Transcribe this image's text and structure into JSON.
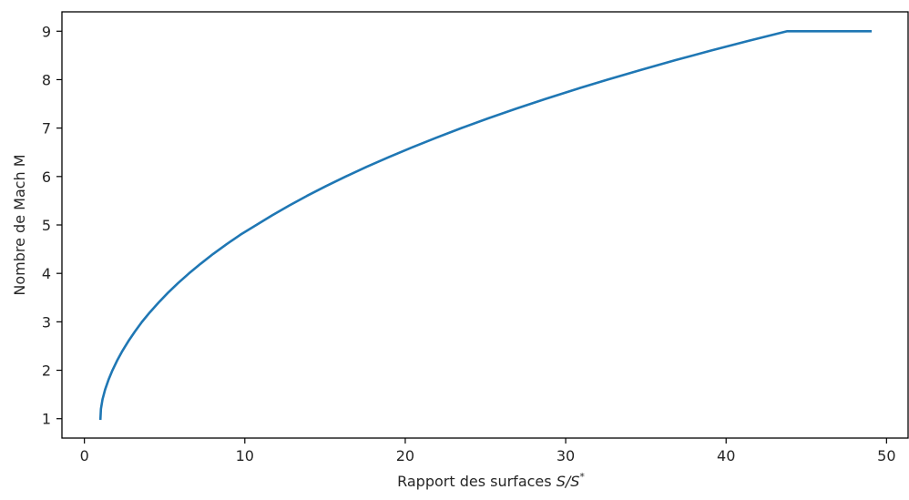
{
  "chart_data": {
    "type": "line",
    "title": "",
    "xlabel_text": "Rapport des surfaces ",
    "xlabel_math": "S/S",
    "xlabel_sup": "*",
    "ylabel": "Nombre de Mach M",
    "xlim": [
      -1.4,
      51.4
    ],
    "ylim": [
      0.6,
      9.4
    ],
    "xticks": [
      0,
      10,
      20,
      30,
      40,
      50
    ],
    "yticks": [
      1,
      2,
      3,
      4,
      5,
      6,
      7,
      8,
      9
    ],
    "grid": false,
    "legend": "none",
    "series": [
      {
        "color": "#1f77b4",
        "x": [
          1.0,
          1.03,
          1.13,
          1.29,
          1.5,
          1.75,
          2.04,
          2.37,
          2.74,
          3.15,
          3.59,
          4.09,
          4.63,
          5.21,
          5.84,
          6.52,
          7.25,
          8.02,
          8.85,
          9.73,
          10.72,
          11.71,
          12.76,
          13.87,
          15.05,
          16.29,
          17.59,
          18.97,
          20.41,
          21.92,
          23.5,
          25.16,
          26.9,
          28.72,
          30.62,
          32.6,
          34.67,
          36.82,
          39.06,
          41.39,
          43.81,
          46.33,
          49.0
        ],
        "y": [
          1.0,
          1.2,
          1.4,
          1.6,
          1.8,
          2.0,
          2.2,
          2.4,
          2.6,
          2.8,
          3.0,
          3.2,
          3.4,
          3.6,
          3.8,
          4.0,
          4.2,
          4.4,
          4.6,
          4.8,
          5.0,
          5.2,
          5.4,
          5.6,
          5.8,
          6.0,
          6.2,
          6.4,
          6.6,
          6.8,
          7.0,
          7.2,
          7.4,
          7.6,
          7.8,
          8.0,
          8.2,
          8.4,
          8.6,
          8.8,
          9.0,
          9.2,
          9.0
        ]
      }
    ]
  }
}
